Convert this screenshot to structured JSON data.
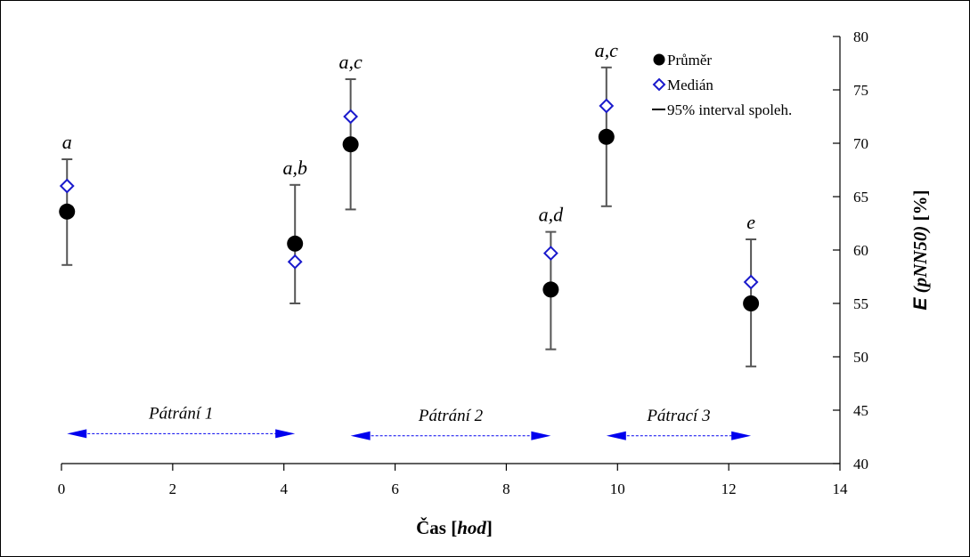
{
  "chart_data": {
    "type": "scatter",
    "xlabel_main": "Čas [",
    "xlabel_unit": "hod",
    "xlabel_close": "]",
    "ylabel_prefix": "E",
    "ylabel_paren": "(pNN50)",
    "ylabel_unit": "[%]",
    "xlim": [
      0,
      14
    ],
    "ylim": [
      40,
      80
    ],
    "x_ticks": [
      0,
      2,
      4,
      6,
      8,
      10,
      12,
      14
    ],
    "y_ticks": [
      40,
      45,
      50,
      55,
      60,
      65,
      70,
      75,
      80
    ],
    "grid": false,
    "legend_position": "top-right",
    "legend": {
      "mean": "Průměr",
      "median": "Medián",
      "ci": "95% interval spoleh."
    },
    "colors": {
      "mean": "#000000",
      "median": "#1a1acc",
      "errorbar": "#555555",
      "arrow": "#0000ee"
    },
    "points": [
      {
        "x": 0.1,
        "mean": 63.6,
        "median": 66.0,
        "ci_low": 58.6,
        "ci_high": 68.5,
        "label": "a"
      },
      {
        "x": 4.2,
        "mean": 60.6,
        "median": 58.9,
        "ci_low": 55.0,
        "ci_high": 66.1,
        "label": "a,b"
      },
      {
        "x": 5.2,
        "mean": 69.9,
        "median": 72.5,
        "ci_low": 63.8,
        "ci_high": 76.0,
        "label": "a,c"
      },
      {
        "x": 8.8,
        "mean": 56.3,
        "median": 59.7,
        "ci_low": 50.7,
        "ci_high": 61.7,
        "label": "a,d"
      },
      {
        "x": 9.8,
        "mean": 70.6,
        "median": 73.5,
        "ci_low": 64.1,
        "ci_high": 77.1,
        "label": "a,c"
      },
      {
        "x": 12.4,
        "mean": 55.0,
        "median": 57.0,
        "ci_low": 49.1,
        "ci_high": 61.0,
        "label": "e"
      }
    ],
    "phases": [
      {
        "x_start": 0.1,
        "x_end": 4.2,
        "y": 42.8,
        "label": "Pátrání 1"
      },
      {
        "x_start": 5.2,
        "x_end": 8.8,
        "y": 42.6,
        "label": "Pátrání 2"
      },
      {
        "x_start": 9.8,
        "x_end": 12.4,
        "y": 42.6,
        "label": "Pátrací 3"
      }
    ]
  }
}
